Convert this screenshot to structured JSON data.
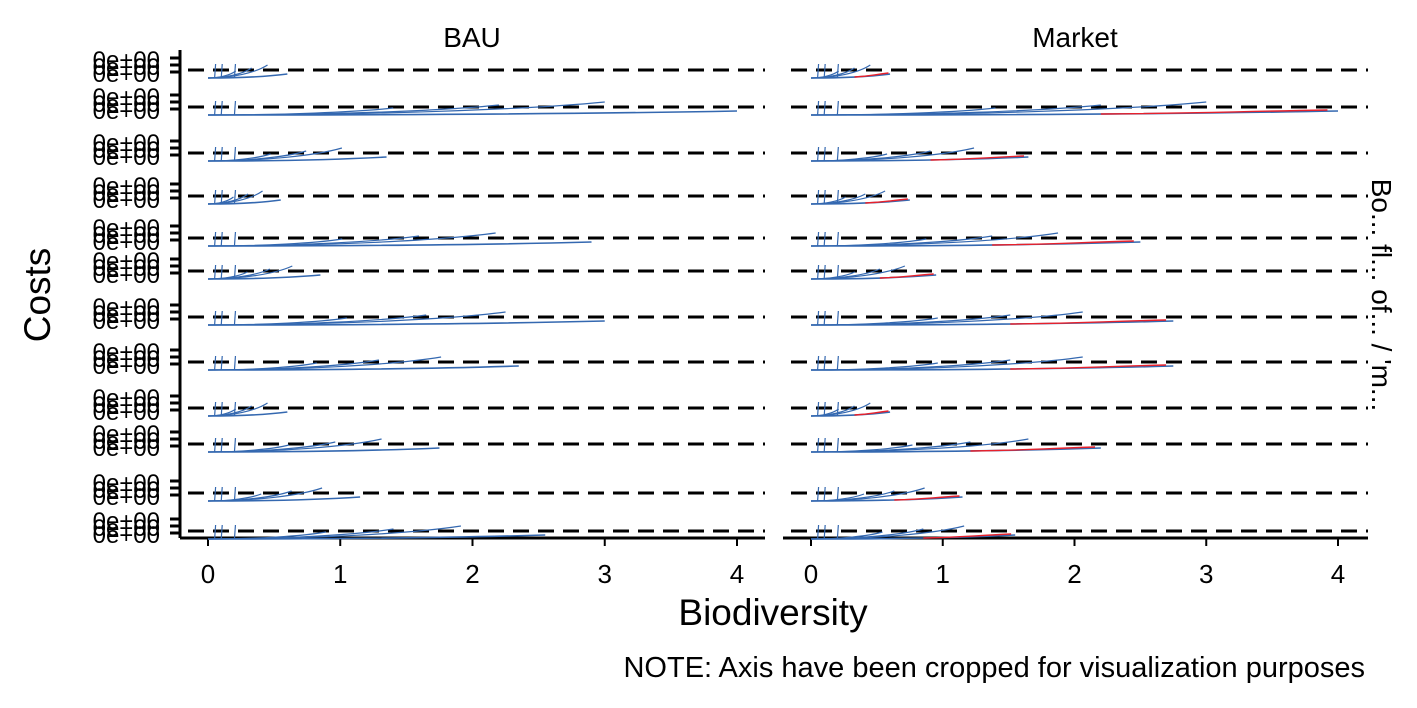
{
  "chart_data": {
    "type": "line",
    "xlabel": "Biodiversity",
    "ylabel": "Costs",
    "xlim": [
      0,
      4
    ],
    "x_ticks": [
      "0",
      "1",
      "2",
      "3",
      "4"
    ],
    "y_tick_label": "0e+00",
    "note": "NOTE: Axis have been cropped for visualization purposes",
    "panels": [
      "BAU",
      "Market"
    ],
    "grid": false,
    "legend": "none",
    "colors": {
      "blue": "#3468b0",
      "red": "#e8212b",
      "dashed": "#000000"
    },
    "strip_right_text": "Bo... fl... of... / 'm...",
    "rows": [
      {
        "BAU_max_x": 0.6,
        "Market_max_x": 0.6
      },
      {
        "BAU_max_x": 4.0,
        "Market_max_x": 4.0
      },
      {
        "BAU_max_x": 1.35,
        "Market_max_x": 1.65
      },
      {
        "BAU_max_x": 0.55,
        "Market_max_x": 0.75
      },
      {
        "BAU_max_x": 2.9,
        "Market_max_x": 2.5
      },
      {
        "BAU_max_x": 0.85,
        "Market_max_x": 0.95
      },
      {
        "BAU_max_x": 3.0,
        "Market_max_x": 2.75
      },
      {
        "BAU_max_x": 2.35,
        "Market_max_x": 2.75
      },
      {
        "BAU_max_x": 0.6,
        "Market_max_x": 0.6
      },
      {
        "BAU_max_x": 1.75,
        "Market_max_x": 2.2
      },
      {
        "BAU_max_x": 1.15,
        "Market_max_x": 1.15
      },
      {
        "BAU_max_x": 2.55,
        "Market_max_x": 1.55
      }
    ]
  }
}
